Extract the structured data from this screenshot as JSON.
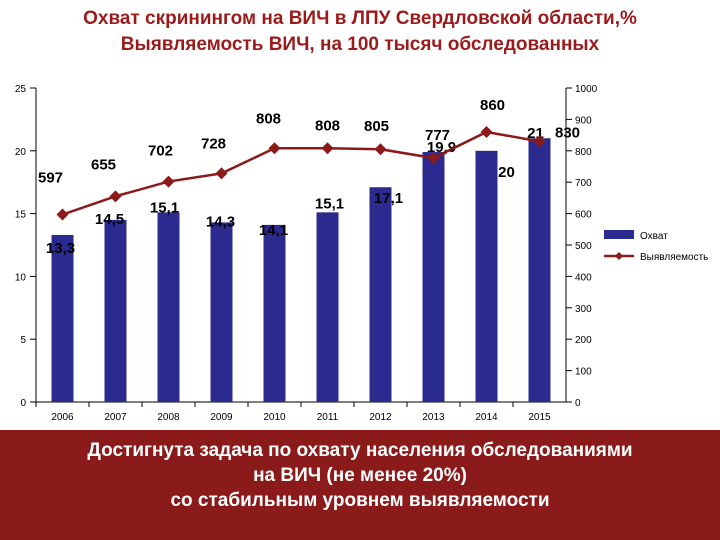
{
  "header": {
    "line1": "Охват скринингом на ВИЧ в ЛПУ Свердловской области,%",
    "line2": "Выявляемость ВИЧ, на 100 тысяч обследованных"
  },
  "chart_data": {
    "type": "bar",
    "categories": [
      "2006",
      "2007",
      "2008",
      "2009",
      "2010",
      "2011",
      "2012",
      "2013",
      "2014",
      "2015"
    ],
    "series": [
      {
        "name": "Охват",
        "type": "bar",
        "axis": "left",
        "color": "#2b2b8f",
        "values": [
          13.3,
          14.5,
          15.1,
          14.3,
          14.1,
          15.1,
          17.1,
          19.9,
          20,
          21
        ],
        "labels": [
          "13,3",
          "14,5",
          "15,1",
          "14,3",
          "14,1",
          "15,1",
          "17,1",
          "19,9",
          "20",
          "21"
        ]
      },
      {
        "name": "Выявляемость",
        "type": "line",
        "axis": "right",
        "color": "#8b1a1a",
        "values": [
          597,
          655,
          702,
          728,
          808,
          808,
          805,
          777,
          860,
          830
        ],
        "labels": [
          "597",
          "655",
          "702",
          "728",
          "808",
          "808",
          "805",
          "777",
          "860",
          "830"
        ]
      }
    ],
    "left_axis": {
      "ylim": [
        0,
        25
      ],
      "ticks": [
        "0",
        "5",
        "10",
        "15",
        "20",
        "25"
      ]
    },
    "right_axis": {
      "ylim": [
        0,
        1000
      ],
      "ticks": [
        "0",
        "100",
        "200",
        "300",
        "400",
        "500",
        "600",
        "700",
        "800",
        "900",
        "1000"
      ]
    },
    "legend": {
      "placement": "right"
    },
    "grid": false
  },
  "banner": {
    "line1": "Достигнута задача по охвату населения обследованиями",
    "line2": "на ВИЧ (не менее 20%)",
    "line3": "со стабильным уровнем выявляемости"
  }
}
